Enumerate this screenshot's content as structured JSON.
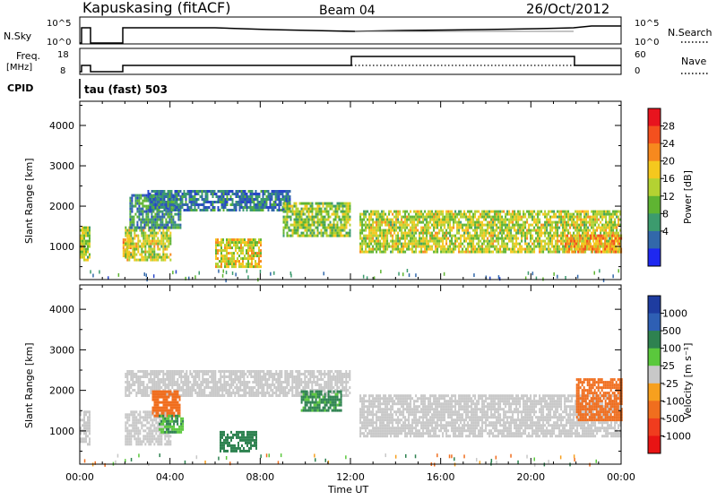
{
  "header": {
    "station": "Kapuskasing (fitACF)",
    "beam": "Beam 04",
    "date": "26/Oct/2012"
  },
  "summary": {
    "nsky_label": "N.Sky",
    "nsky_ticks": [
      "10^5",
      "10^0"
    ],
    "nsearch_label": "N.Search",
    "freq_label": "Freq.",
    "freq_unit": "[MHz]",
    "freq_ticks": [
      "18",
      "8"
    ],
    "nave_label": "Nave",
    "nave_ticks": [
      "60",
      "0"
    ],
    "cpid_label": "CPID",
    "cpid_value": "tau (fast) 503"
  },
  "power_panel": {
    "ylabel": "Slant Range [km]",
    "colorbar_label": "Power [dB]",
    "colorbar_ticks": [
      "28",
      "24",
      "20",
      "16",
      "12",
      "8",
      "4"
    ],
    "colorbar_colors": [
      "#e8141e",
      "#f4501e",
      "#f7891e",
      "#f5c81e",
      "#b4d232",
      "#5fb432",
      "#3c9b6e",
      "#3268aa",
      "#2846c8",
      "#1e28f0"
    ]
  },
  "velocity_panel": {
    "ylabel": "Slant Range [km]",
    "colorbar_label": "Velocity [m s⁻¹]",
    "colorbar_ticks": [
      "1000",
      "500",
      "100",
      "25",
      "-25",
      "-100",
      "-500",
      "-1000"
    ],
    "colorbar_colors": [
      "#1e3ca0",
      "#2e5fb4",
      "#2e8250",
      "#5ac83c",
      "#c8c8c8",
      "#f7a01e",
      "#f06e1e",
      "#f03c1e",
      "#e81414"
    ]
  },
  "xaxis": {
    "label": "Time UT",
    "ticks": [
      "00:00",
      "04:00",
      "08:00",
      "12:00",
      "16:00",
      "20:00",
      "00:00"
    ]
  },
  "chart_data": [
    {
      "type": "heatmap",
      "title": "Kapuskasing (fitACF) Beam 04 26/Oct/2012",
      "ylabel": "Slant Range [km]",
      "xlabel": "Time UT",
      "colorbar": "Power [dB]",
      "xlim": [
        0,
        24
      ],
      "ylim": [
        180,
        4600
      ],
      "yticks": [
        1000,
        2000,
        3000,
        4000
      ],
      "clim": [
        0,
        32
      ],
      "regions": [
        {
          "t": [
            0.0,
            0.45
          ],
          "range": [
            700,
            1500
          ],
          "value": 18
        },
        {
          "t": [
            1.9,
            2.4
          ],
          "range": [
            800,
            1200
          ],
          "value": 22
        },
        {
          "t": [
            2.0,
            4.0
          ],
          "range": [
            700,
            1500
          ],
          "value": 18
        },
        {
          "t": [
            2.2,
            4.5
          ],
          "range": [
            1500,
            2300
          ],
          "value": 10
        },
        {
          "t": [
            3.0,
            9.3
          ],
          "range": [
            1900,
            2400
          ],
          "value": 8
        },
        {
          "t": [
            6.0,
            8.0
          ],
          "range": [
            500,
            1200
          ],
          "value": 20
        },
        {
          "t": [
            9.0,
            12.0
          ],
          "range": [
            1300,
            2100
          ],
          "value": 16
        },
        {
          "t": [
            12.4,
            24.0
          ],
          "range": [
            900,
            1900
          ],
          "value": 18
        },
        {
          "t": [
            21.5,
            24.0
          ],
          "range": [
            900,
            1300
          ],
          "value": 24
        }
      ]
    },
    {
      "type": "heatmap",
      "title": "Kapuskasing (fitACF) Beam 04 26/Oct/2012",
      "ylabel": "Slant Range [km]",
      "xlabel": "Time UT",
      "colorbar": "Velocity [m s-1]",
      "xlim": [
        0,
        24
      ],
      "ylim": [
        180,
        4600
      ],
      "yticks": [
        1000,
        2000,
        3000,
        4000
      ],
      "regions": [
        {
          "t": [
            0.0,
            0.45
          ],
          "range": [
            700,
            1500
          ],
          "value": 0
        },
        {
          "t": [
            2.0,
            12.0
          ],
          "range": [
            1900,
            2500
          ],
          "value": 0
        },
        {
          "t": [
            2.0,
            4.0
          ],
          "range": [
            700,
            1500
          ],
          "value": 0
        },
        {
          "t": [
            3.2,
            4.4
          ],
          "range": [
            1400,
            2000
          ],
          "value": -150
        },
        {
          "t": [
            3.5,
            4.6
          ],
          "range": [
            1000,
            1400
          ],
          "value": 60
        },
        {
          "t": [
            6.2,
            7.8
          ],
          "range": [
            500,
            1000
          ],
          "value": 120
        },
        {
          "t": [
            9.8,
            11.6
          ],
          "range": [
            1500,
            2000
          ],
          "value": 80
        },
        {
          "t": [
            12.4,
            24.0
          ],
          "range": [
            900,
            1900
          ],
          "value": 0
        },
        {
          "t": [
            22.0,
            24.0
          ],
          "range": [
            1300,
            2300
          ],
          "value": -200
        }
      ]
    }
  ]
}
